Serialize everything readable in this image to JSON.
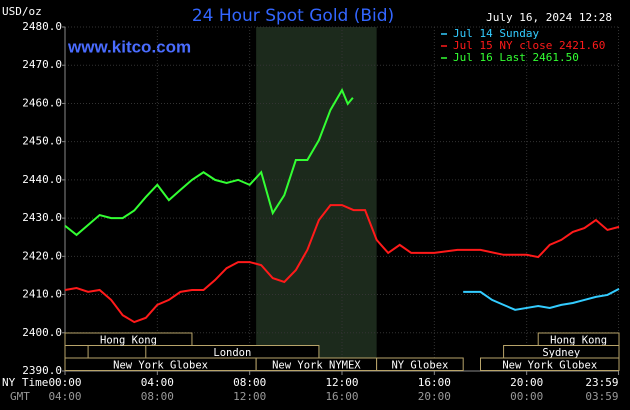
{
  "chart_data": {
    "type": "line",
    "title": "24 Hour Spot Gold (Bid)",
    "unit_label": "USD/oz",
    "timestamp": "July 16, 2024 12:28",
    "source": "www.kitco.com",
    "x_label": "NY Time",
    "x2_label": "GMT",
    "xlim": [
      0,
      24
    ],
    "ylim": [
      2390,
      2480
    ],
    "xticks": [
      {
        "value": 0,
        "label": "00:00"
      },
      {
        "value": 4,
        "label": "04:00"
      },
      {
        "value": 8,
        "label": "08:00"
      },
      {
        "value": 12,
        "label": "12:00"
      },
      {
        "value": 16,
        "label": "16:00"
      },
      {
        "value": 20,
        "label": "20:00"
      },
      {
        "value": 23.98,
        "label": "23:59"
      }
    ],
    "x2ticks": [
      {
        "value": 0,
        "label": "04:00"
      },
      {
        "value": 4,
        "label": "08:00"
      },
      {
        "value": 8,
        "label": "12:00"
      },
      {
        "value": 12,
        "label": "16:00"
      },
      {
        "value": 16,
        "label": "20:00"
      },
      {
        "value": 20,
        "label": "00:00"
      },
      {
        "value": 23.98,
        "label": "03:59"
      }
    ],
    "yticks": [
      {
        "value": 2390,
        "label": "2390.0"
      },
      {
        "value": 2400,
        "label": "2400.0"
      },
      {
        "value": 2410,
        "label": "2410.0"
      },
      {
        "value": 2420,
        "label": "2420.0"
      },
      {
        "value": 2430,
        "label": "2430.0"
      },
      {
        "value": 2440,
        "label": "2440.0"
      },
      {
        "value": 2450,
        "label": "2450.0"
      },
      {
        "value": 2460,
        "label": "2460.0"
      },
      {
        "value": 2470,
        "label": "2470.0"
      },
      {
        "value": 2480,
        "label": "2480.0"
      }
    ],
    "grid": true,
    "shaded_band": [
      8.28,
      13.5
    ],
    "shaded_color": "#1c2a1c",
    "series": [
      {
        "name": "Jul 14 Sunday",
        "color": "#33ccff",
        "x": [
          17.25,
          18,
          18.5,
          19,
          19.5,
          20,
          20.5,
          21,
          21.5,
          22,
          22.5,
          23,
          23.5,
          24
        ],
        "values": [
          2410.7,
          2410.7,
          2408.6,
          2407.3,
          2406,
          2406.5,
          2407,
          2406.5,
          2407.3,
          2407.8,
          2408.6,
          2409.4,
          2409.9,
          2411.5
        ]
      },
      {
        "name": "Jul 15 NY close 2421.60",
        "color": "#ff1a1a",
        "x": [
          0,
          0.5,
          1,
          1.5,
          2,
          2.5,
          3,
          3.5,
          4,
          4.5,
          5,
          5.5,
          6,
          6.5,
          7,
          7.5,
          8,
          8.5,
          9,
          9.5,
          10,
          10.5,
          11,
          11.5,
          12,
          12.5,
          13,
          13.5,
          14,
          14.5,
          15,
          16,
          17,
          18,
          19,
          20,
          20.5,
          21,
          21.5,
          22,
          22.5,
          23,
          23.5,
          24
        ],
        "values": [
          2411.2,
          2411.7,
          2410.7,
          2411.2,
          2408.6,
          2404.6,
          2402.8,
          2403.9,
          2407.3,
          2408.6,
          2410.7,
          2411.2,
          2411.2,
          2413.8,
          2416.9,
          2418.5,
          2418.5,
          2417.7,
          2414.3,
          2413.3,
          2416.4,
          2421.7,
          2429.5,
          2433.4,
          2433.4,
          2432.1,
          2432.1,
          2424.3,
          2420.9,
          2423,
          2420.9,
          2420.9,
          2421.7,
          2421.7,
          2420.4,
          2420.4,
          2419.8,
          2423,
          2424.3,
          2426.4,
          2427.4,
          2429.5,
          2426.9,
          2427.7
        ]
      },
      {
        "name": "Jul 16 Last 2461.50",
        "color": "#33ff33",
        "x": [
          0,
          0.5,
          1,
          1.5,
          2,
          2.5,
          3,
          3.5,
          4,
          4.5,
          5,
          5.5,
          6,
          6.5,
          7,
          7.5,
          8,
          8.5,
          9,
          9.5,
          10,
          10.5,
          11,
          11.5,
          12,
          12.25,
          12.47
        ],
        "values": [
          2428,
          2425.6,
          2428.2,
          2430.8,
          2430,
          2430,
          2432,
          2435.5,
          2438.7,
          2434.7,
          2437.4,
          2440,
          2442,
          2440,
          2439.2,
          2440,
          2438.7,
          2442,
          2431.3,
          2436,
          2445.2,
          2445.2,
          2450.4,
          2458.3,
          2463.5,
          2459.9,
          2461.5
        ]
      }
    ],
    "session_rows": [
      [
        {
          "label": "Hong Kong",
          "start": 0,
          "end": 5.5
        },
        {
          "label": "Hong Kong",
          "start": 20.5,
          "end": 24
        }
      ],
      [
        {
          "label": null,
          "start": 0,
          "end": 1
        },
        {
          "label": "London",
          "start": 3.5,
          "end": 11
        },
        {
          "label": "Sydney",
          "start": 19,
          "end": 24
        }
      ],
      [
        {
          "label": "New York Globex",
          "start": 0,
          "end": 8.28
        },
        {
          "label": "New York NYMEX",
          "start": 8.28,
          "end": 13.5
        },
        {
          "label": "NY Globex",
          "start": 13.5,
          "end": 17.25
        },
        {
          "label": "New York Globex",
          "start": 18,
          "end": 24
        }
      ]
    ]
  }
}
